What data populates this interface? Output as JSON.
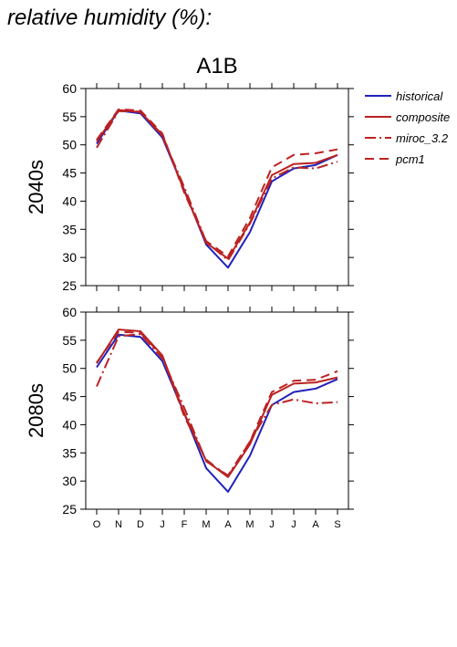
{
  "heading": "relative humidity (%):",
  "scenario": "A1B",
  "legend": [
    {
      "label": "historical",
      "color": "#2222bb",
      "dash": "solid"
    },
    {
      "label": "composite",
      "color": "#bb2222",
      "dash": "solid"
    },
    {
      "label": "miroc_3.2",
      "color": "#bb2222",
      "dash": "dashdot"
    },
    {
      "label": "pcm1",
      "color": "#bb2222",
      "dash": "dash"
    }
  ],
  "chart_data": [
    {
      "type": "line",
      "panel": "2040s",
      "categories": [
        "O",
        "N",
        "D",
        "J",
        "F",
        "M",
        "A",
        "M",
        "J",
        "J",
        "A",
        "S"
      ],
      "ylim": [
        25,
        60
      ],
      "yticks": [
        25,
        30,
        35,
        40,
        45,
        50,
        55,
        60
      ],
      "series": [
        {
          "name": "historical",
          "values": [
            50.2,
            56.1,
            55.6,
            51.3,
            42.0,
            32.3,
            28.2,
            34.5,
            43.5,
            45.8,
            46.4,
            48.2
          ]
        },
        {
          "name": "composite",
          "values": [
            50.6,
            56.2,
            55.8,
            51.8,
            41.8,
            32.6,
            29.8,
            36.2,
            44.6,
            46.6,
            46.8,
            48.2
          ]
        },
        {
          "name": "miroc_3.2",
          "values": [
            49.5,
            56.0,
            55.9,
            51.5,
            42.5,
            32.8,
            29.5,
            36.0,
            44.0,
            46.0,
            45.8,
            47.0
          ]
        },
        {
          "name": "pcm1",
          "values": [
            50.9,
            56.3,
            56.1,
            52.0,
            41.5,
            32.9,
            30.2,
            37.0,
            46.0,
            48.2,
            48.5,
            49.2
          ]
        }
      ]
    },
    {
      "type": "line",
      "panel": "2080s",
      "categories": [
        "O",
        "N",
        "D",
        "J",
        "F",
        "M",
        "A",
        "M",
        "J",
        "J",
        "A",
        "S"
      ],
      "ylim": [
        25,
        60
      ],
      "yticks": [
        25,
        30,
        35,
        40,
        45,
        50,
        55,
        60
      ],
      "series": [
        {
          "name": "historical",
          "values": [
            50.2,
            56.0,
            55.6,
            51.3,
            42.0,
            32.3,
            28.1,
            34.5,
            43.5,
            45.8,
            46.4,
            48.1
          ]
        },
        {
          "name": "composite",
          "values": [
            50.9,
            56.9,
            56.6,
            52.3,
            42.0,
            33.6,
            30.7,
            36.5,
            45.3,
            47.3,
            47.5,
            48.4
          ]
        },
        {
          "name": "miroc_3.2",
          "values": [
            46.8,
            55.7,
            56.1,
            51.8,
            43.0,
            33.5,
            31.0,
            37.0,
            43.5,
            44.5,
            43.8,
            44.0
          ]
        },
        {
          "name": "pcm1",
          "values": [
            51.0,
            56.5,
            56.3,
            52.2,
            41.5,
            33.8,
            30.8,
            37.0,
            45.8,
            47.8,
            48.0,
            49.5
          ]
        }
      ]
    }
  ]
}
